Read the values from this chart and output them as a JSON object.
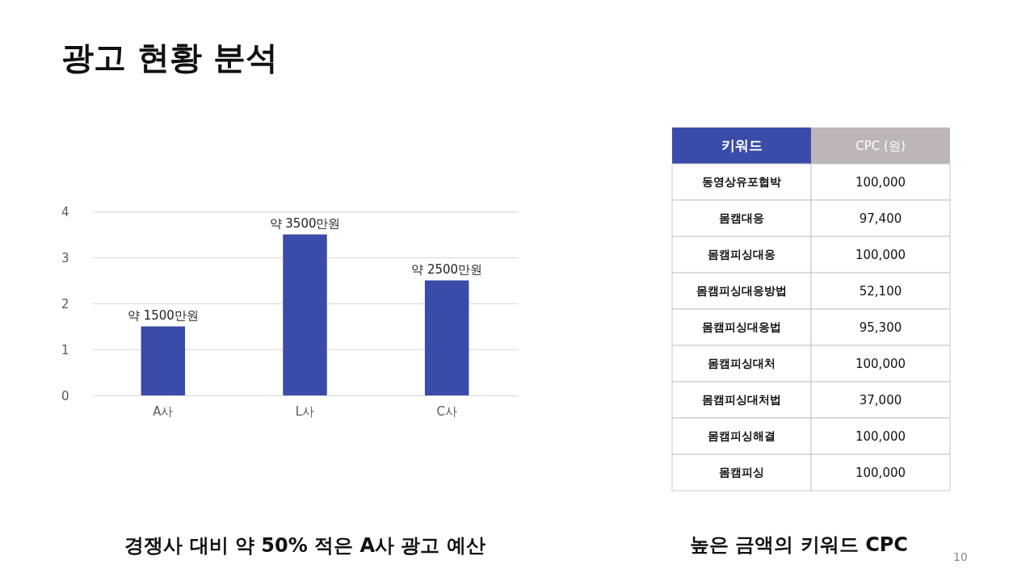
{
  "chart_data": [
    {
      "type": "other",
      "title": "광고 현황 분석"
    },
    {
      "type": "bar",
      "title": "경쟁사 대비 약 50% 적은 A사 광고 예산",
      "categories": [
        "A사",
        "L사",
        "C사"
      ],
      "values": [
        1.5,
        3.5,
        2.5
      ],
      "color": "#3b4ba9",
      "value_labels": [
        "약 1500만원",
        "약 3500만원",
        "약 2500만원"
      ],
      "ylim": [
        0,
        4
      ],
      "yticks": [
        0,
        1,
        2,
        3,
        4
      ],
      "grid": "y"
    },
    {
      "type": "other",
      "title": "높은 금액의 키워드 CPC",
      "xlabel": "키워드",
      "ylabel": "CPC (원)",
      "categories": [
        "동영상유포협박",
        "몸캠대응",
        "몸캠피싱대응",
        "몸캠피싱대응방법",
        "몸캠피싱대응법",
        "몸캠피싱대처",
        "몸캠피싱대처법",
        "몸캠피싱해결",
        "몸캠피싱"
      ],
      "value_labels": [
        "100,000",
        "97,400",
        "100,000",
        "52,100",
        "95,300",
        "100,000",
        "37,000",
        "100,000",
        "100,000"
      ],
      "annotations": [
        "10"
      ]
    }
  ]
}
